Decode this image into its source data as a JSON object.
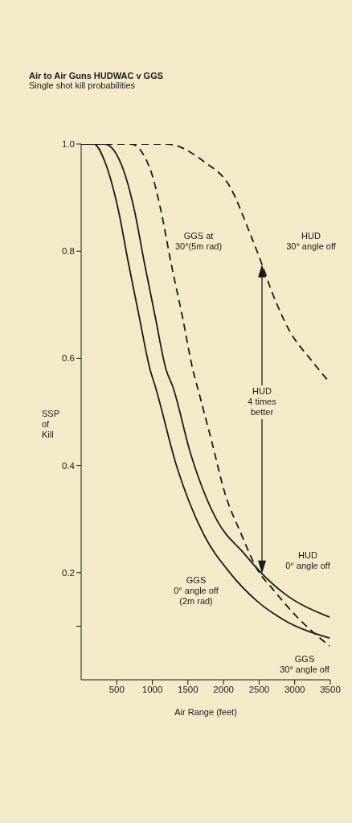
{
  "chart_data": {
    "type": "line",
    "title": "Air to Air Guns HUDWAC v GGS",
    "subtitle": "Single shot kill probabilities",
    "xlabel": "Air Range (feet)",
    "ylabel": "SSP\nof\nKill",
    "xlim": [
      0,
      3500
    ],
    "xticks": [
      500,
      1000,
      1500,
      2000,
      2500,
      3000,
      3500
    ],
    "ylim": [
      0,
      1
    ],
    "yticks": [
      {
        "value": 0.1,
        "label": null
      },
      0.2,
      0.4,
      0.6,
      0.8,
      {
        "value": 1,
        "label": "1.0"
      }
    ],
    "marker": "none",
    "series": [
      {
        "color": "#1a1a1a",
        "line_style": "solid",
        "x": [
          0,
          180,
          330,
          520,
          665,
          815,
          970,
          1040,
          1343,
          1715,
          2100,
          2470,
          2845,
          3490
        ],
        "values": [
          1,
          1,
          0.968,
          0.878,
          0.777,
          0.678,
          0.578,
          0.548,
          0.398,
          0.273,
          0.198,
          0.147,
          0.112,
          0.078
        ]
      },
      {
        "color": "#1a1a1a",
        "line_style": "solid",
        "x": [
          0,
          330,
          590,
          745,
          890,
          1040,
          1195,
          1285,
          1535,
          1910,
          2280,
          2505,
          2845,
          3490
        ],
        "values": [
          1,
          1,
          0.953,
          0.878,
          0.777,
          0.678,
          0.578,
          0.548,
          0.423,
          0.297,
          0.237,
          0.203,
          0.162,
          0.117
        ]
      },
      {
        "color": "#1a1a1a",
        "line_style": "dashed",
        "x": [
          0,
          700,
          970,
          1117,
          1264,
          1422,
          1570,
          1660,
          1830,
          2020,
          2245,
          2470,
          2700,
          3035,
          3490
        ],
        "values": [
          1,
          1,
          0.953,
          0.878,
          0.777,
          0.678,
          0.578,
          0.533,
          0.447,
          0.348,
          0.273,
          0.207,
          0.168,
          0.117,
          0.063
        ]
      },
      {
        "color": "#1a1a1a",
        "line_style": "dashed",
        "x": [
          0,
          1195,
          1715,
          2100,
          2360,
          2505,
          2700,
          2920,
          3230,
          3490
        ],
        "values": [
          1,
          1,
          0.968,
          0.918,
          0.837,
          0.788,
          0.717,
          0.653,
          0.597,
          0.555
        ]
      }
    ],
    "annotations": [
      "GGS at\n30°(5m rad)",
      "HUD\n30° angle off",
      "HUD\n4 times\nbetter",
      "HUD\n0° angle off",
      "GGS\n0° angle off\n(2m rad)",
      "GGS\n30° angle off"
    ]
  }
}
